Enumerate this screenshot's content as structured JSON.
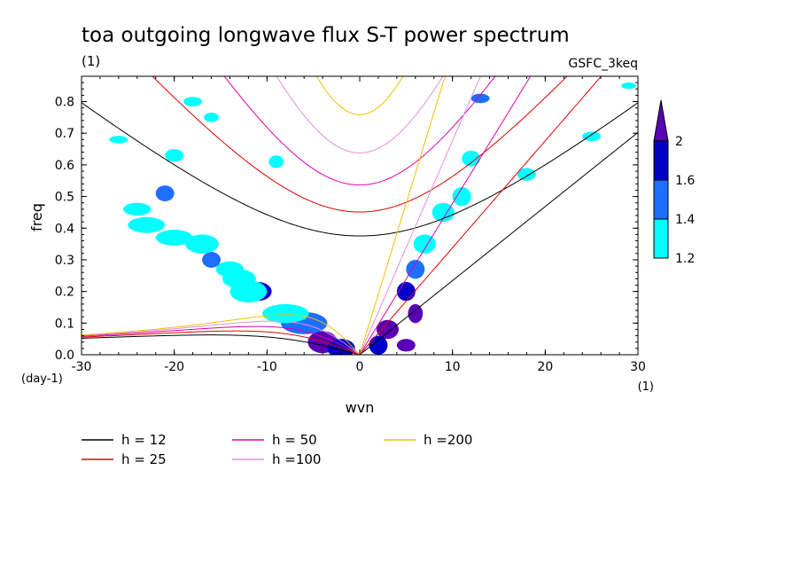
{
  "chart_data": {
    "type": "contour",
    "title": "toa outgoing longwave flux S-T power spectrum",
    "subtitle": "(1)",
    "model_label": "GSFC_3keq",
    "xlabel": "wvn",
    "ylabel": "freq",
    "x_unit_label": "(1)",
    "y_unit_label": "(day-1)",
    "xlim": [
      -30,
      30
    ],
    "ylim": [
      0,
      0.88
    ],
    "x_ticks": [
      -30,
      -20,
      -10,
      0,
      10,
      20,
      30
    ],
    "x_tick_labels": [
      "-30",
      "-20",
      "-10",
      "0",
      "10",
      "20",
      "30"
    ],
    "y_ticks": [
      0,
      0.1,
      0.2,
      0.3,
      0.4,
      0.5,
      0.6,
      0.7,
      0.8
    ],
    "y_tick_labels": [
      "0.0",
      "0.1",
      "0.2",
      "0.3",
      "0.4",
      "0.5",
      "0.6",
      "0.7",
      "0.8"
    ],
    "colorbar": {
      "levels": [
        1.2,
        1.4,
        1.6,
        2
      ],
      "level_labels": [
        "1.2",
        "1.4",
        "1.6",
        "2"
      ],
      "colors": [
        "#00ffff",
        "#1e6eff",
        "#0000c8",
        "#5a00b4"
      ]
    },
    "dispersion_curves": [
      {
        "name": "h = 12",
        "h": 12,
        "color": "#000000"
      },
      {
        "name": "h = 25",
        "h": 25,
        "color": "#e00000"
      },
      {
        "name": "h = 50",
        "h": 50,
        "color": "#dd00aa"
      },
      {
        "name": "h =100",
        "h": 100,
        "color": "#e08ee0"
      },
      {
        "name": "h =200",
        "h": 200,
        "color": "#f0c000"
      }
    ],
    "contour_blobs": [
      {
        "x": -4,
        "y": 0.04,
        "level": 3,
        "rx": 1.6,
        "ry": 0.035
      },
      {
        "x": -2,
        "y": 0.02,
        "level": 2,
        "rx": 1.5,
        "ry": 0.03
      },
      {
        "x": -6,
        "y": 0.1,
        "level": 1,
        "rx": 2.5,
        "ry": 0.035
      },
      {
        "x": -8,
        "y": 0.13,
        "level": 0,
        "rx": 2.5,
        "ry": 0.03
      },
      {
        "x": -11,
        "y": 0.2,
        "level": 2,
        "rx": 1.5,
        "ry": 0.03
      },
      {
        "x": -12,
        "y": 0.2,
        "level": 0,
        "rx": 2.0,
        "ry": 0.035
      },
      {
        "x": -13,
        "y": 0.24,
        "level": 0,
        "rx": 1.8,
        "ry": 0.03
      },
      {
        "x": -14,
        "y": 0.27,
        "level": 0,
        "rx": 1.5,
        "ry": 0.025
      },
      {
        "x": -16,
        "y": 0.3,
        "level": 1,
        "rx": 1.0,
        "ry": 0.025
      },
      {
        "x": -17,
        "y": 0.35,
        "level": 0,
        "rx": 1.8,
        "ry": 0.03
      },
      {
        "x": -20,
        "y": 0.37,
        "level": 0,
        "rx": 2.0,
        "ry": 0.025
      },
      {
        "x": -23,
        "y": 0.41,
        "level": 0,
        "rx": 2.0,
        "ry": 0.025
      },
      {
        "x": -24,
        "y": 0.46,
        "level": 0,
        "rx": 1.5,
        "ry": 0.02
      },
      {
        "x": -21,
        "y": 0.51,
        "level": 1,
        "rx": 1.0,
        "ry": 0.025
      },
      {
        "x": -20,
        "y": 0.63,
        "level": 0,
        "rx": 1.0,
        "ry": 0.02
      },
      {
        "x": -26,
        "y": 0.68,
        "level": 0,
        "rx": 1.0,
        "ry": 0.012
      },
      {
        "x": 3,
        "y": 0.08,
        "level": 3,
        "rx": 1.2,
        "ry": 0.03
      },
      {
        "x": 2,
        "y": 0.03,
        "level": 2,
        "rx": 1.0,
        "ry": 0.03
      },
      {
        "x": 5,
        "y": 0.03,
        "level": 3,
        "rx": 1.0,
        "ry": 0.02
      },
      {
        "x": 6,
        "y": 0.13,
        "level": 3,
        "rx": 0.8,
        "ry": 0.03
      },
      {
        "x": 5,
        "y": 0.2,
        "level": 2,
        "rx": 1.0,
        "ry": 0.03
      },
      {
        "x": 6,
        "y": 0.27,
        "level": 1,
        "rx": 1.0,
        "ry": 0.03
      },
      {
        "x": 7,
        "y": 0.35,
        "level": 0,
        "rx": 1.2,
        "ry": 0.03
      },
      {
        "x": 9,
        "y": 0.45,
        "level": 0,
        "rx": 1.2,
        "ry": 0.03
      },
      {
        "x": 12,
        "y": 0.62,
        "level": 0,
        "rx": 1.0,
        "ry": 0.025
      },
      {
        "x": 11,
        "y": 0.5,
        "level": 0,
        "rx": 1.0,
        "ry": 0.03
      },
      {
        "x": 13,
        "y": 0.81,
        "level": 1,
        "rx": 1.0,
        "ry": 0.015
      },
      {
        "x": -9,
        "y": 0.61,
        "level": 0,
        "rx": 0.8,
        "ry": 0.02
      },
      {
        "x": -16,
        "y": 0.75,
        "level": 0,
        "rx": 0.8,
        "ry": 0.015
      },
      {
        "x": -18,
        "y": 0.8,
        "level": 0,
        "rx": 1.0,
        "ry": 0.015
      },
      {
        "x": 25,
        "y": 0.69,
        "level": 0,
        "rx": 1.0,
        "ry": 0.015
      },
      {
        "x": 18,
        "y": 0.57,
        "level": 0,
        "rx": 1.0,
        "ry": 0.02
      },
      {
        "x": 29,
        "y": 0.85,
        "level": 0,
        "rx": 0.8,
        "ry": 0.01
      }
    ]
  }
}
